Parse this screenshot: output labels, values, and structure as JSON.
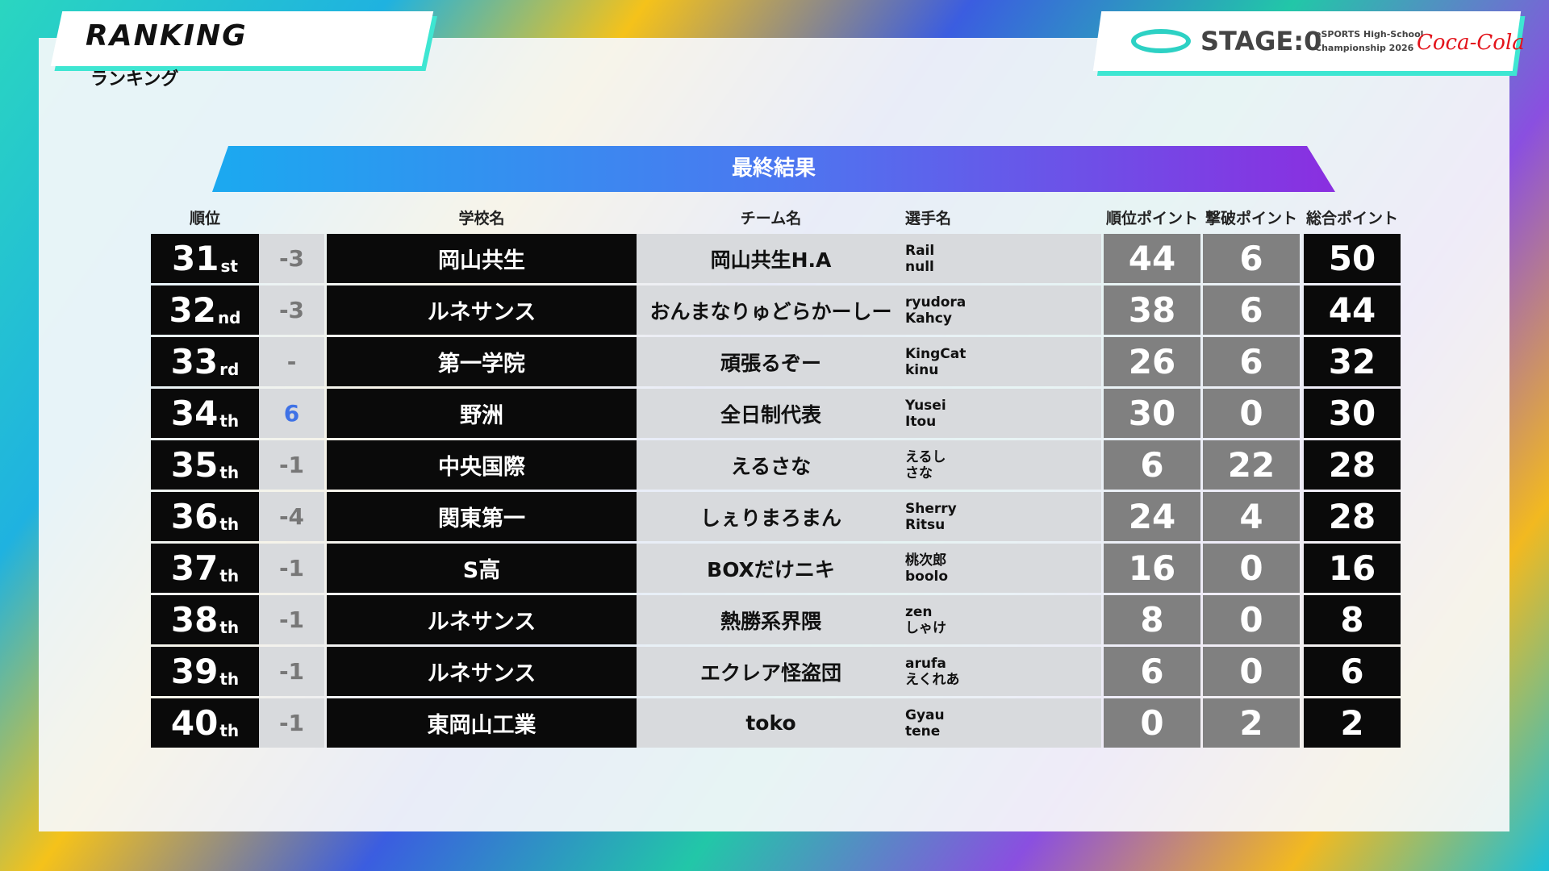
{
  "header": {
    "title": "RANKING",
    "subtitle": "ランキング"
  },
  "logo": {
    "stage": "STAGE:0",
    "line1": "eSPORTS High-School",
    "line2": "Championship 2026",
    "sponsor": "Coca-Cola"
  },
  "table": {
    "title": "最終結果",
    "columns": {
      "rank": "順位",
      "school": "学校名",
      "team": "チーム名",
      "players": "選手名",
      "rank_points": "順位ポイント",
      "kill_points": "撃破ポイント",
      "total": "総合ポイント"
    },
    "rows": [
      {
        "rank": "31",
        "suffix": "st",
        "change": "-3",
        "school": "岡山共生",
        "team": "岡山共生H.A",
        "players": [
          "Rail",
          "null"
        ],
        "rank_points": 44,
        "kill_points": 6,
        "total": 50
      },
      {
        "rank": "32",
        "suffix": "nd",
        "change": "-3",
        "school": "ルネサンス",
        "team": "おんまなりゅどらかーしー",
        "players": [
          "ryudora",
          "Kahcy"
        ],
        "rank_points": 38,
        "kill_points": 6,
        "total": 44
      },
      {
        "rank": "33",
        "suffix": "rd",
        "change": "-",
        "school": "第一学院",
        "team": "頑張るぞー",
        "players": [
          "KingCat",
          "kinu"
        ],
        "rank_points": 26,
        "kill_points": 6,
        "total": 32
      },
      {
        "rank": "34",
        "suffix": "th",
        "change": "6",
        "school": "野洲",
        "team": "全日制代表",
        "players": [
          "Yusei",
          "Itou"
        ],
        "rank_points": 30,
        "kill_points": 0,
        "total": 30
      },
      {
        "rank": "35",
        "suffix": "th",
        "change": "-1",
        "school": "中央国際",
        "team": "えるさな",
        "players": [
          "えるし",
          "さな"
        ],
        "rank_points": 6,
        "kill_points": 22,
        "total": 28
      },
      {
        "rank": "36",
        "suffix": "th",
        "change": "-4",
        "school": "関東第一",
        "team": "しぇりまろまん",
        "players": [
          "Sherry",
          "Ritsu"
        ],
        "rank_points": 24,
        "kill_points": 4,
        "total": 28
      },
      {
        "rank": "37",
        "suffix": "th",
        "change": "-1",
        "school": "S高",
        "team": "BOXだけニキ",
        "players": [
          "桃次郎",
          "boolo"
        ],
        "rank_points": 16,
        "kill_points": 0,
        "total": 16
      },
      {
        "rank": "38",
        "suffix": "th",
        "change": "-1",
        "school": "ルネサンス",
        "team": "熱勝系界隈",
        "players": [
          "zen",
          "しゃけ"
        ],
        "rank_points": 8,
        "kill_points": 0,
        "total": 8
      },
      {
        "rank": "39",
        "suffix": "th",
        "change": "-1",
        "school": "ルネサンス",
        "team": "エクレア怪盗団",
        "players": [
          "arufa",
          "えくれあ"
        ],
        "rank_points": 6,
        "kill_points": 0,
        "total": 6
      },
      {
        "rank": "40",
        "suffix": "th",
        "change": "-1",
        "school": "東岡山工業",
        "team": "toko",
        "players": [
          "Gyau",
          "tene"
        ],
        "rank_points": 0,
        "kill_points": 2,
        "total": 2
      }
    ]
  }
}
